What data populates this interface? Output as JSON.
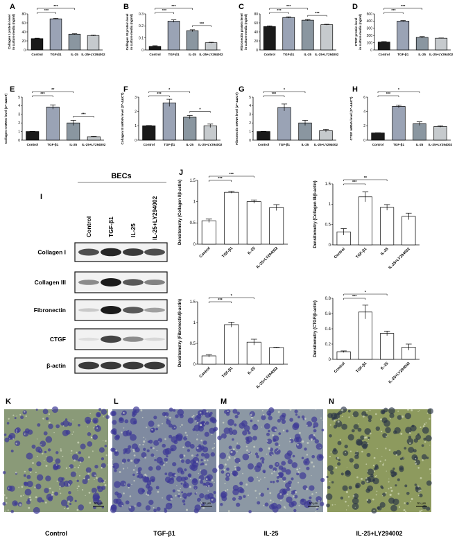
{
  "figure": {
    "western_header": "BECs",
    "western_lanes": [
      "Control",
      "TGF-β1",
      "IL-25",
      "IL-25+LY294002"
    ],
    "blot_rows": [
      {
        "label": "Collagen I",
        "intensity": [
          0.75,
          0.95,
          0.85,
          0.75
        ]
      },
      {
        "label": "Collagen III",
        "intensity": [
          0.45,
          1.0,
          0.7,
          0.5
        ]
      },
      {
        "label": "Fibronectin",
        "intensity": [
          0.15,
          1.0,
          0.7,
          0.35
        ]
      },
      {
        "label": "CTGF",
        "intensity": [
          0.05,
          0.8,
          0.45,
          0.08
        ]
      },
      {
        "label": "β-actin",
        "intensity": [
          0.85,
          0.85,
          0.85,
          0.85
        ]
      }
    ],
    "micrographs": [
      {
        "letter": "K",
        "caption": "Control",
        "scale": "50 μm",
        "cell_density": 0.35,
        "tint": "#8a9a78"
      },
      {
        "letter": "L",
        "caption": "TGF-β1",
        "scale": "50 μm",
        "cell_density": 0.85,
        "tint": "#7f8aa0"
      },
      {
        "letter": "M",
        "caption": "IL-25",
        "scale": "50 μm",
        "cell_density": 0.6,
        "tint": "#8c98a4"
      },
      {
        "letter": "N",
        "caption": "IL-25+LY294002",
        "scale": "50 μm",
        "cell_density": 0.4,
        "tint": "#8d9a5e"
      }
    ]
  },
  "chart_data": [
    {
      "letter": "A",
      "type": "bar",
      "categories": [
        "Control",
        "TGF-β1",
        "IL-25",
        "IL-25+LY294002"
      ],
      "values": [
        25,
        69,
        35,
        32
      ],
      "errors": [
        1,
        1,
        1,
        1
      ],
      "ylabel": "Collagen I protein level\nin culture media (ng/ml)",
      "ylim": [
        0,
        80
      ],
      "yticks": [
        0,
        20,
        40,
        60,
        80
      ],
      "colors": [
        "#1a1a1a",
        "#9aa3b5",
        "#8a96a0",
        "#c6cacd"
      ],
      "sig": [
        {
          "from": 0,
          "to": 1,
          "label": "***"
        },
        {
          "from": 0,
          "to": 2,
          "label": "***"
        }
      ]
    },
    {
      "letter": "B",
      "type": "bar",
      "categories": [
        "Control",
        "TGF-β1",
        "IL-25",
        "IL-25+LY294002"
      ],
      "values": [
        0.03,
        0.24,
        0.16,
        0.06
      ],
      "errors": [
        0.005,
        0.01,
        0.008,
        0.004
      ],
      "ylabel": "Collagen III protein level\nin culture media (ng/ml)",
      "ylim": [
        0,
        0.3
      ],
      "yticks": [
        0.0,
        0.1,
        0.2,
        0.3
      ],
      "colors": [
        "#1a1a1a",
        "#9aa3b5",
        "#8a96a0",
        "#c6cacd"
      ],
      "sig": [
        {
          "from": 0,
          "to": 1,
          "label": "***"
        },
        {
          "from": 0,
          "to": 2,
          "label": "***"
        },
        {
          "from": 2,
          "to": 3,
          "label": "***"
        }
      ]
    },
    {
      "letter": "C",
      "type": "bar",
      "categories": [
        "Control",
        "TGF-β1",
        "IL-25",
        "IL-25+LY294002"
      ],
      "values": [
        52,
        72,
        66,
        56
      ],
      "errors": [
        1.5,
        1.5,
        1.5,
        1
      ],
      "ylabel": "Fibronectin protein level\nin culture media (ng/ml)",
      "ylim": [
        0,
        80
      ],
      "yticks": [
        0,
        20,
        40,
        60,
        80
      ],
      "colors": [
        "#1a1a1a",
        "#9aa3b5",
        "#8a96a0",
        "#c6cacd"
      ],
      "sig": [
        {
          "from": 0,
          "to": 1,
          "label": "***"
        },
        {
          "from": 0,
          "to": 2,
          "label": "***"
        },
        {
          "from": 2,
          "to": 3,
          "label": "***"
        }
      ]
    },
    {
      "letter": "D",
      "type": "bar",
      "categories": [
        "Control",
        "TGF-β1",
        "IL-25",
        "IL-25+LY294002"
      ],
      "values": [
        110,
        400,
        175,
        162
      ],
      "errors": [
        6,
        8,
        10,
        4
      ],
      "ylabel": "CTGF protein level\nin culture media (ng/ml)",
      "ylim": [
        0,
        500
      ],
      "yticks": [
        0,
        100,
        200,
        300,
        400,
        500
      ],
      "colors": [
        "#1a1a1a",
        "#9aa3b5",
        "#8a96a0",
        "#c6cacd"
      ],
      "sig": [
        {
          "from": 0,
          "to": 1,
          "label": "***"
        },
        {
          "from": 0,
          "to": 2,
          "label": "***"
        }
      ]
    },
    {
      "letter": "E",
      "type": "bar",
      "categories": [
        "Control",
        "TGF-β1",
        "IL-25",
        "IL-25+LY294002"
      ],
      "values": [
        1.0,
        3.85,
        2.0,
        0.4
      ],
      "errors": [
        0.02,
        0.25,
        0.3,
        0.05
      ],
      "ylabel": "Collagen I mRNA level (2^-ΔΔCT)",
      "ylim": [
        0,
        5
      ],
      "yticks": [
        0,
        1,
        2,
        3,
        4,
        5
      ],
      "colors": [
        "#1a1a1a",
        "#9aa3b5",
        "#8a96a0",
        "#c6cacd"
      ],
      "sig": [
        {
          "from": 0,
          "to": 1,
          "label": "***"
        },
        {
          "from": 0,
          "to": 2,
          "label": "**"
        },
        {
          "from": 2,
          "to": 3,
          "label": "***"
        }
      ]
    },
    {
      "letter": "F",
      "type": "bar",
      "categories": [
        "Control",
        "TGF-β1",
        "IL-25",
        "IL-25+LY294002"
      ],
      "values": [
        1.0,
        2.6,
        1.6,
        1.0
      ],
      "errors": [
        0.02,
        0.25,
        0.12,
        0.12
      ],
      "ylabel": "Collagen III mRNA level (2^-ΔΔCT)",
      "ylim": [
        0,
        3
      ],
      "yticks": [
        0,
        1,
        2,
        3
      ],
      "colors": [
        "#1a1a1a",
        "#9aa3b5",
        "#8a96a0",
        "#c6cacd"
      ],
      "sig": [
        {
          "from": 0,
          "to": 1,
          "label": "***"
        },
        {
          "from": 0,
          "to": 2,
          "label": "*"
        },
        {
          "from": 2,
          "to": 3,
          "label": "*"
        }
      ]
    },
    {
      "letter": "G",
      "type": "bar",
      "categories": [
        "Control",
        "TGF-β1",
        "IL-25",
        "IL-25+LY294002"
      ],
      "values": [
        1.0,
        3.8,
        2.0,
        1.1
      ],
      "errors": [
        0.02,
        0.4,
        0.3,
        0.15
      ],
      "ylabel": "Fibronectin mRNA level (2^-ΔΔCT)",
      "ylim": [
        0,
        5
      ],
      "yticks": [
        0,
        1,
        2,
        3,
        4,
        5
      ],
      "colors": [
        "#1a1a1a",
        "#9aa3b5",
        "#8a96a0",
        "#c6cacd"
      ],
      "sig": [
        {
          "from": 0,
          "to": 1,
          "label": "***"
        },
        {
          "from": 0,
          "to": 2,
          "label": "*"
        }
      ]
    },
    {
      "letter": "H",
      "type": "bar",
      "categories": [
        "Control",
        "TGF-β1",
        "IL-25",
        "IL-25+LY294002"
      ],
      "values": [
        1.0,
        4.7,
        2.3,
        1.9
      ],
      "errors": [
        0.02,
        0.2,
        0.25,
        0.1
      ],
      "ylabel": "CTGF mRNA level (2^-ΔΔCT)",
      "ylim": [
        0,
        6
      ],
      "yticks": [
        0,
        2,
        4,
        6
      ],
      "colors": [
        "#1a1a1a",
        "#9aa3b5",
        "#8a96a0",
        "#c6cacd"
      ],
      "sig": [
        {
          "from": 0,
          "to": 1,
          "label": "***"
        },
        {
          "from": 0,
          "to": 2,
          "label": "*"
        }
      ]
    },
    {
      "letter": "J",
      "type": "bar",
      "categories": [
        "Control",
        "TGF-β1",
        "IL-25",
        "IL-25+LY294002"
      ],
      "values": [
        0.55,
        1.22,
        1.0,
        0.86
      ],
      "errors": [
        0.04,
        0.02,
        0.04,
        0.07
      ],
      "ylabel": "Densitometry (Collagen I/β-actin)",
      "ylim": [
        0,
        1.5
      ],
      "yticks": [
        0.0,
        0.5,
        1.0,
        1.5
      ],
      "colors": [
        "#ffffff",
        "#ffffff",
        "#ffffff",
        "#ffffff"
      ],
      "sig": [
        {
          "from": 0,
          "to": 1,
          "label": "***"
        },
        {
          "from": 0,
          "to": 2,
          "label": "***"
        }
      ]
    },
    {
      "letter": "",
      "type": "bar",
      "categories": [
        "Control",
        "TGF-β1",
        "IL-25",
        "IL-25+LY294002"
      ],
      "values": [
        0.32,
        1.18,
        0.92,
        0.7
      ],
      "errors": [
        0.08,
        0.12,
        0.07,
        0.08
      ],
      "ylabel": "Densitometry (Collagen III/β-actin)",
      "ylim": [
        0,
        1.5
      ],
      "yticks": [
        0.0,
        0.5,
        1.0,
        1.5
      ],
      "colors": [
        "#ffffff",
        "#ffffff",
        "#ffffff",
        "#ffffff"
      ],
      "sig": [
        {
          "from": 0,
          "to": 1,
          "label": "***"
        },
        {
          "from": 0,
          "to": 2,
          "label": "**"
        }
      ]
    },
    {
      "letter": "",
      "type": "bar",
      "categories": [
        "Control",
        "TGF-β1",
        "IL-25",
        "IL-25+LY294002"
      ],
      "values": [
        0.2,
        0.95,
        0.53,
        0.4
      ],
      "errors": [
        0.03,
        0.06,
        0.07,
        0.01
      ],
      "ylabel": "Densitometry (Fibronectin/β-actin)",
      "ylim": [
        0,
        1.5
      ],
      "yticks": [
        0.0,
        0.5,
        1.0,
        1.5
      ],
      "colors": [
        "#ffffff",
        "#ffffff",
        "#ffffff",
        "#ffffff"
      ],
      "sig": [
        {
          "from": 0,
          "to": 1,
          "label": "***"
        },
        {
          "from": 0,
          "to": 2,
          "label": "*"
        }
      ]
    },
    {
      "letter": "",
      "type": "bar",
      "categories": [
        "Control",
        "TGF-β1",
        "IL-25",
        "IL-25+LY294002"
      ],
      "values": [
        0.1,
        0.62,
        0.34,
        0.16
      ],
      "errors": [
        0.01,
        0.09,
        0.03,
        0.04
      ],
      "ylabel": "Densitometry (CTGF/β-actin)",
      "ylim": [
        0,
        0.8
      ],
      "yticks": [
        0.0,
        0.2,
        0.4,
        0.6,
        0.8
      ],
      "colors": [
        "#ffffff",
        "#ffffff",
        "#ffffff",
        "#ffffff"
      ],
      "sig": [
        {
          "from": 0,
          "to": 1,
          "label": "***"
        },
        {
          "from": 0,
          "to": 2,
          "label": "*"
        }
      ]
    }
  ]
}
